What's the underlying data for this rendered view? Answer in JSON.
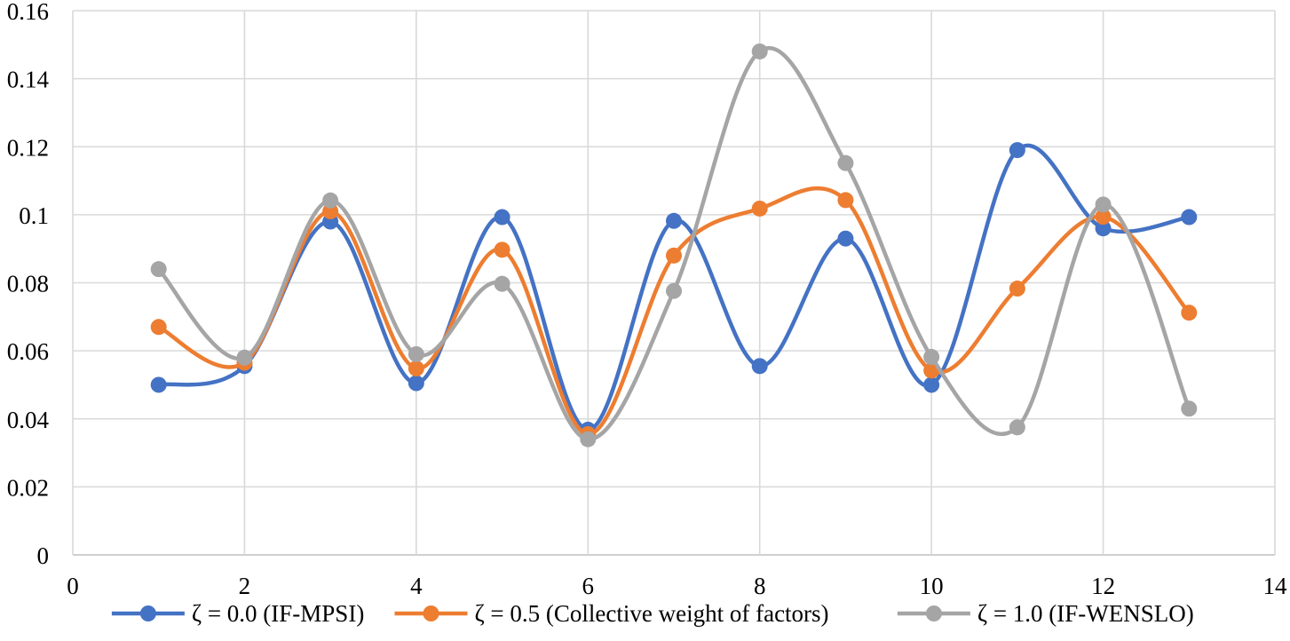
{
  "chart_data": {
    "type": "scatter",
    "mode": "markers+smooth-lines",
    "title": "",
    "xlabel": "",
    "ylabel": "",
    "xlim": [
      0,
      14
    ],
    "ylim": [
      0,
      0.16
    ],
    "xticks": [
      0,
      2,
      4,
      6,
      8,
      10,
      12,
      14
    ],
    "yticks": [
      0,
      0.02,
      0.04,
      0.06,
      0.08,
      0.1,
      0.12,
      0.14,
      0.16
    ],
    "xtick_labels": [
      "0",
      "2",
      "4",
      "6",
      "8",
      "10",
      "12",
      "14"
    ],
    "ytick_labels": [
      "0",
      "0.02",
      "0.04",
      "0.06",
      "0.08",
      "0.1",
      "0.12",
      "0.14",
      "0.16"
    ],
    "grid": "vertical and horizontal",
    "legend_position": "bottom",
    "x": [
      1,
      2,
      3,
      4,
      5,
      6,
      7,
      8,
      9,
      10,
      11,
      12,
      13
    ],
    "series": [
      {
        "name": "ζ = 0.0 (IF-MPSI)",
        "color": "#4472C4",
        "values": [
          0.05,
          0.0555,
          0.098,
          0.0505,
          0.0993,
          0.0368,
          0.0982,
          0.0555,
          0.093,
          0.05,
          0.119,
          0.096,
          0.0993
        ]
      },
      {
        "name": "ζ = 0.5 (Collective weight of factors)",
        "color": "#ED7D31",
        "values": [
          0.067,
          0.0565,
          0.101,
          0.0548,
          0.0897,
          0.0355,
          0.088,
          0.1018,
          0.1043,
          0.0542,
          0.0783,
          0.0994,
          0.0712
        ]
      },
      {
        "name": "ζ = 1.0 (IF-WENSLO)",
        "color": "#A5A5A5",
        "values": [
          0.084,
          0.058,
          0.1042,
          0.059,
          0.0797,
          0.034,
          0.0776,
          0.148,
          0.1152,
          0.0582,
          0.0375,
          0.103,
          0.043
        ]
      }
    ]
  }
}
